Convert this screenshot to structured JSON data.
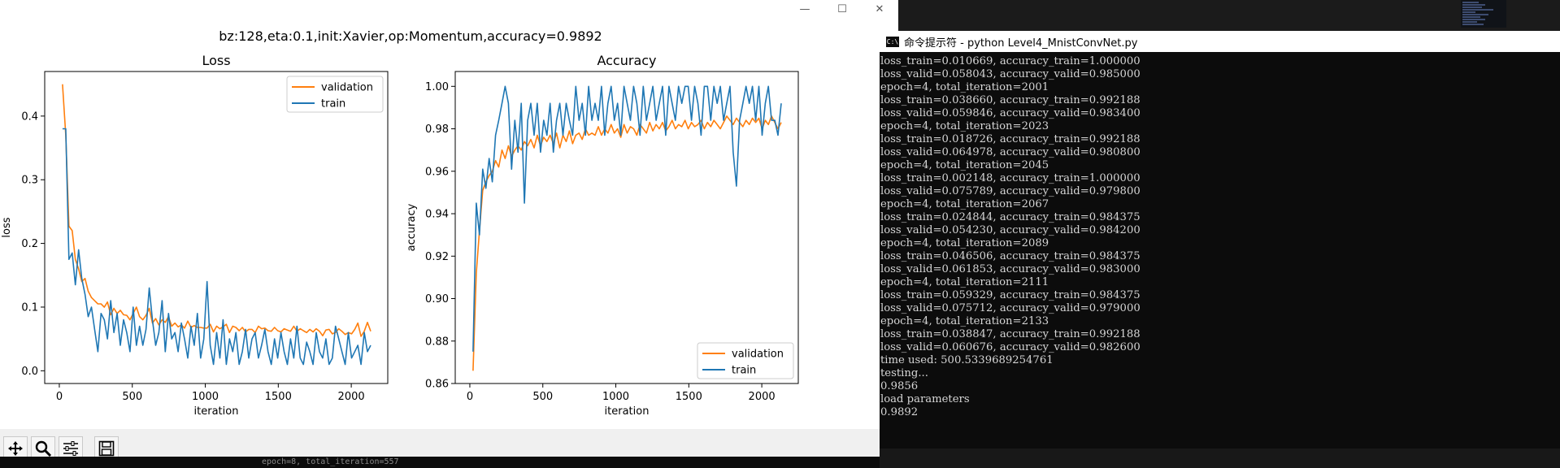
{
  "plot_window": {
    "controls": {
      "minimize": "—",
      "maximize": "☐",
      "close": "✕"
    },
    "toolbar": [
      "move-icon",
      "zoom-icon",
      "configure-icon",
      "save-icon"
    ]
  },
  "chart_data": [
    {
      "type": "line",
      "suptitle": "bz:128,eta:0.1,init:Xavier,op:Momentum,accuracy=0.9892",
      "title": "Loss",
      "xlabel": "iteration",
      "ylabel": "loss",
      "xlim": [
        -100,
        2250
      ],
      "ylim": [
        -0.02,
        0.47
      ],
      "xticks": [
        0,
        500,
        1000,
        1500,
        2000
      ],
      "yticks": [
        0.0,
        0.1,
        0.2,
        0.3,
        0.4
      ],
      "ytick_labels": [
        "0.0",
        "0.1",
        "0.2",
        "0.3",
        "0.4"
      ],
      "legend_position": "upper right",
      "series": [
        {
          "name": "validation",
          "color": "#ff7f0e",
          "x": [
            22,
            44,
            66,
            88,
            110,
            132,
            154,
            176,
            198,
            220,
            242,
            264,
            286,
            308,
            330,
            352,
            374,
            396,
            418,
            440,
            462,
            484,
            506,
            528,
            550,
            572,
            594,
            616,
            638,
            660,
            682,
            704,
            726,
            748,
            770,
            792,
            814,
            836,
            858,
            880,
            902,
            924,
            946,
            968,
            990,
            1012,
            1034,
            1056,
            1078,
            1100,
            1122,
            1144,
            1166,
            1188,
            1210,
            1232,
            1254,
            1276,
            1298,
            1320,
            1342,
            1364,
            1386,
            1408,
            1430,
            1452,
            1474,
            1496,
            1518,
            1540,
            1562,
            1584,
            1606,
            1628,
            1650,
            1672,
            1694,
            1716,
            1738,
            1760,
            1782,
            1804,
            1826,
            1848,
            1870,
            1892,
            1914,
            1936,
            1958,
            1980,
            2002,
            2024,
            2045,
            2067,
            2089,
            2111,
            2133
          ],
          "y": [
            0.45,
            0.37,
            0.227,
            0.22,
            0.175,
            0.16,
            0.14,
            0.145,
            0.125,
            0.115,
            0.11,
            0.105,
            0.105,
            0.1,
            0.108,
            0.088,
            0.098,
            0.09,
            0.095,
            0.088,
            0.087,
            0.08,
            0.09,
            0.1,
            0.085,
            0.08,
            0.087,
            0.098,
            0.075,
            0.082,
            0.072,
            0.08,
            0.076,
            0.085,
            0.07,
            0.075,
            0.069,
            0.072,
            0.067,
            0.078,
            0.068,
            0.071,
            0.068,
            0.068,
            0.067,
            0.067,
            0.073,
            0.061,
            0.07,
            0.066,
            0.069,
            0.073,
            0.06,
            0.07,
            0.068,
            0.063,
            0.068,
            0.061,
            0.065,
            0.065,
            0.06,
            0.07,
            0.066,
            0.067,
            0.063,
            0.062,
            0.068,
            0.063,
            0.061,
            0.066,
            0.064,
            0.062,
            0.07,
            0.062,
            0.066,
            0.063,
            0.06,
            0.065,
            0.061,
            0.066,
            0.062,
            0.055,
            0.064,
            0.065,
            0.058,
            0.06,
            0.066,
            0.062,
            0.057,
            0.06,
            0.058,
            0.065,
            0.075,
            0.054,
            0.062,
            0.076,
            0.062
          ]
        },
        {
          "name": "train",
          "color": "#1f77b4",
          "x": [
            22,
            44,
            66,
            88,
            110,
            132,
            154,
            176,
            198,
            220,
            242,
            264,
            286,
            308,
            330,
            352,
            374,
            396,
            418,
            440,
            462,
            484,
            506,
            528,
            550,
            572,
            594,
            616,
            638,
            660,
            682,
            704,
            726,
            748,
            770,
            792,
            814,
            836,
            858,
            880,
            902,
            924,
            946,
            968,
            990,
            1012,
            1034,
            1056,
            1078,
            1100,
            1122,
            1144,
            1166,
            1188,
            1210,
            1232,
            1254,
            1276,
            1298,
            1320,
            1342,
            1364,
            1386,
            1408,
            1430,
            1452,
            1474,
            1496,
            1518,
            1540,
            1562,
            1584,
            1606,
            1628,
            1650,
            1672,
            1694,
            1716,
            1738,
            1760,
            1782,
            1804,
            1826,
            1848,
            1870,
            1892,
            1914,
            1936,
            1958,
            1980,
            2002,
            2024,
            2045,
            2067,
            2089,
            2111,
            2133
          ],
          "y": [
            0.38,
            0.38,
            0.175,
            0.185,
            0.135,
            0.19,
            0.145,
            0.12,
            0.085,
            0.1,
            0.065,
            0.03,
            0.09,
            0.08,
            0.05,
            0.11,
            0.06,
            0.09,
            0.04,
            0.08,
            0.06,
            0.03,
            0.1,
            0.04,
            0.07,
            0.04,
            0.065,
            0.13,
            0.08,
            0.04,
            0.06,
            0.11,
            0.03,
            0.09,
            0.05,
            0.06,
            0.03,
            0.075,
            0.05,
            0.02,
            0.07,
            0.04,
            0.09,
            0.02,
            0.05,
            0.14,
            0.04,
            0.01,
            0.06,
            0.02,
            0.08,
            0.01,
            0.05,
            0.03,
            0.06,
            0.01,
            0.03,
            0.065,
            0.02,
            0.05,
            0.06,
            0.02,
            0.04,
            0.065,
            0.03,
            0.01,
            0.05,
            0.02,
            0.06,
            0.03,
            0.01,
            0.05,
            0.02,
            0.07,
            0.02,
            0.01,
            0.045,
            0.03,
            0.01,
            0.06,
            0.03,
            0.02,
            0.05,
            0.01,
            0.02,
            0.07,
            0.05,
            0.03,
            0.01,
            0.06,
            0.02,
            0.03,
            0.04,
            0.01,
            0.06,
            0.03,
            0.04
          ]
        }
      ]
    },
    {
      "type": "line",
      "title": "Accuracy",
      "xlabel": "iteration",
      "ylabel": "accuracy",
      "xlim": [
        -100,
        2250
      ],
      "ylim": [
        0.86,
        1.007
      ],
      "xticks": [
        0,
        500,
        1000,
        1500,
        2000
      ],
      "yticks": [
        0.86,
        0.88,
        0.9,
        0.92,
        0.94,
        0.96,
        0.98,
        1.0
      ],
      "ytick_labels": [
        "0.86",
        "0.88",
        "0.90",
        "0.92",
        "0.94",
        "0.96",
        "0.98",
        "1.00"
      ],
      "legend_position": "lower right",
      "series": [
        {
          "name": "validation",
          "color": "#ff7f0e",
          "x": [
            22,
            44,
            66,
            88,
            110,
            132,
            154,
            176,
            198,
            220,
            242,
            264,
            286,
            308,
            330,
            352,
            374,
            396,
            418,
            440,
            462,
            484,
            506,
            528,
            550,
            572,
            594,
            616,
            638,
            660,
            682,
            704,
            726,
            748,
            770,
            792,
            814,
            836,
            858,
            880,
            902,
            924,
            946,
            968,
            990,
            1012,
            1034,
            1056,
            1078,
            1100,
            1122,
            1144,
            1166,
            1188,
            1210,
            1232,
            1254,
            1276,
            1298,
            1320,
            1342,
            1364,
            1386,
            1408,
            1430,
            1452,
            1474,
            1496,
            1518,
            1540,
            1562,
            1584,
            1606,
            1628,
            1650,
            1672,
            1694,
            1716,
            1738,
            1760,
            1782,
            1804,
            1826,
            1848,
            1870,
            1892,
            1914,
            1936,
            1958,
            1980,
            2002,
            2024,
            2045,
            2067,
            2089,
            2111,
            2133
          ],
          "y": [
            0.866,
            0.912,
            0.932,
            0.951,
            0.955,
            0.958,
            0.96,
            0.965,
            0.962,
            0.97,
            0.966,
            0.972,
            0.967,
            0.97,
            0.972,
            0.97,
            0.974,
            0.972,
            0.975,
            0.971,
            0.977,
            0.972,
            0.976,
            0.974,
            0.977,
            0.973,
            0.978,
            0.971,
            0.977,
            0.974,
            0.979,
            0.973,
            0.977,
            0.978,
            0.975,
            0.98,
            0.977,
            0.978,
            0.977,
            0.981,
            0.977,
            0.98,
            0.978,
            0.982,
            0.978,
            0.98,
            0.976,
            0.982,
            0.978,
            0.981,
            0.98,
            0.977,
            0.982,
            0.98,
            0.978,
            0.983,
            0.979,
            0.982,
            0.98,
            0.983,
            0.979,
            0.981,
            0.984,
            0.98,
            0.982,
            0.981,
            0.984,
            0.98,
            0.983,
            0.981,
            0.982,
            0.984,
            0.98,
            0.983,
            0.981,
            0.984,
            0.982,
            0.98,
            0.983,
            0.986,
            0.984,
            0.982,
            0.985,
            0.983,
            0.981,
            0.984,
            0.982,
            0.985,
            0.983,
            0.985,
            0.98,
            0.984,
            0.982,
            0.986,
            0.983,
            0.98,
            0.983
          ]
        },
        {
          "name": "train",
          "color": "#1f77b4",
          "x": [
            22,
            44,
            66,
            88,
            110,
            132,
            154,
            176,
            198,
            220,
            242,
            264,
            286,
            308,
            330,
            352,
            374,
            396,
            418,
            440,
            462,
            484,
            506,
            528,
            550,
            572,
            594,
            616,
            638,
            660,
            682,
            704,
            726,
            748,
            770,
            792,
            814,
            836,
            858,
            880,
            902,
            924,
            946,
            968,
            990,
            1012,
            1034,
            1056,
            1078,
            1100,
            1122,
            1144,
            1166,
            1188,
            1210,
            1232,
            1254,
            1276,
            1298,
            1320,
            1342,
            1364,
            1386,
            1408,
            1430,
            1452,
            1474,
            1496,
            1518,
            1540,
            1562,
            1584,
            1606,
            1628,
            1650,
            1672,
            1694,
            1716,
            1738,
            1760,
            1782,
            1804,
            1826,
            1848,
            1870,
            1892,
            1914,
            1936,
            1958,
            1980,
            2002,
            2024,
            2045,
            2067,
            2089,
            2111,
            2133
          ],
          "y": [
            0.875,
            0.945,
            0.93,
            0.961,
            0.952,
            0.966,
            0.955,
            0.977,
            0.984,
            0.992,
            1.0,
            0.992,
            0.961,
            0.984,
            0.969,
            0.992,
            0.945,
            0.984,
            0.992,
            0.977,
            0.992,
            0.969,
            0.984,
            0.977,
            0.992,
            0.969,
            0.984,
            0.992,
            0.977,
            0.992,
            0.984,
            0.977,
            1.0,
            0.984,
            0.992,
            0.977,
            1.0,
            0.984,
            0.992,
            0.984,
            1.0,
            0.977,
            0.992,
            1.0,
            0.984,
            0.992,
            0.977,
            1.0,
            0.992,
            0.984,
            1.0,
            0.992,
            0.977,
            1.0,
            0.984,
            0.992,
            1.0,
            0.984,
            0.992,
            1.0,
            0.977,
            1.0,
            0.992,
            0.984,
            1.0,
            0.992,
            1.0,
            1.0,
            0.984,
            1.0,
            0.992,
            0.977,
            1.0,
            1.0,
            0.984,
            1.0,
            0.992,
            1.0,
            0.984,
            0.992,
            1.0,
            0.969,
            0.953,
            0.984,
            0.992,
            1.0,
            0.992,
            1.0,
            0.984,
            1.0,
            0.977,
            0.992,
            1.0,
            0.984,
            0.984,
            0.977,
            0.992
          ]
        }
      ]
    }
  ],
  "console": {
    "title": "命令提示符 - python  Level4_MnistConvNet.py",
    "icon_text": "C:\\",
    "lines": [
      "loss_train=0.010669, accuracy_train=1.000000",
      "loss_valid=0.058043, accuracy_valid=0.985000",
      "epoch=4, total_iteration=2001",
      "loss_train=0.038660, accuracy_train=0.992188",
      "loss_valid=0.059846, accuracy_valid=0.983400",
      "epoch=4, total_iteration=2023",
      "loss_train=0.018726, accuracy_train=0.992188",
      "loss_valid=0.064978, accuracy_valid=0.980800",
      "epoch=4, total_iteration=2045",
      "loss_train=0.002148, accuracy_train=1.000000",
      "loss_valid=0.075789, accuracy_valid=0.979800",
      "epoch=4, total_iteration=2067",
      "loss_train=0.024844, accuracy_train=0.984375",
      "loss_valid=0.054230, accuracy_valid=0.984200",
      "epoch=4, total_iteration=2089",
      "loss_train=0.046506, accuracy_train=0.984375",
      "loss_valid=0.061853, accuracy_valid=0.983000",
      "epoch=4, total_iteration=2111",
      "loss_train=0.059329, accuracy_train=0.984375",
      "loss_valid=0.075712, accuracy_valid=0.979000",
      "epoch=4, total_iteration=2133",
      "loss_train=0.038847, accuracy_train=0.992188",
      "loss_valid=0.060676, accuracy_valid=0.982600",
      "time used: 500.5339689254761",
      "testing...",
      "0.9856",
      "load parameters",
      "0.9892"
    ]
  },
  "background_window": {
    "partial_text": "epoch=8, total_iteration=557"
  }
}
